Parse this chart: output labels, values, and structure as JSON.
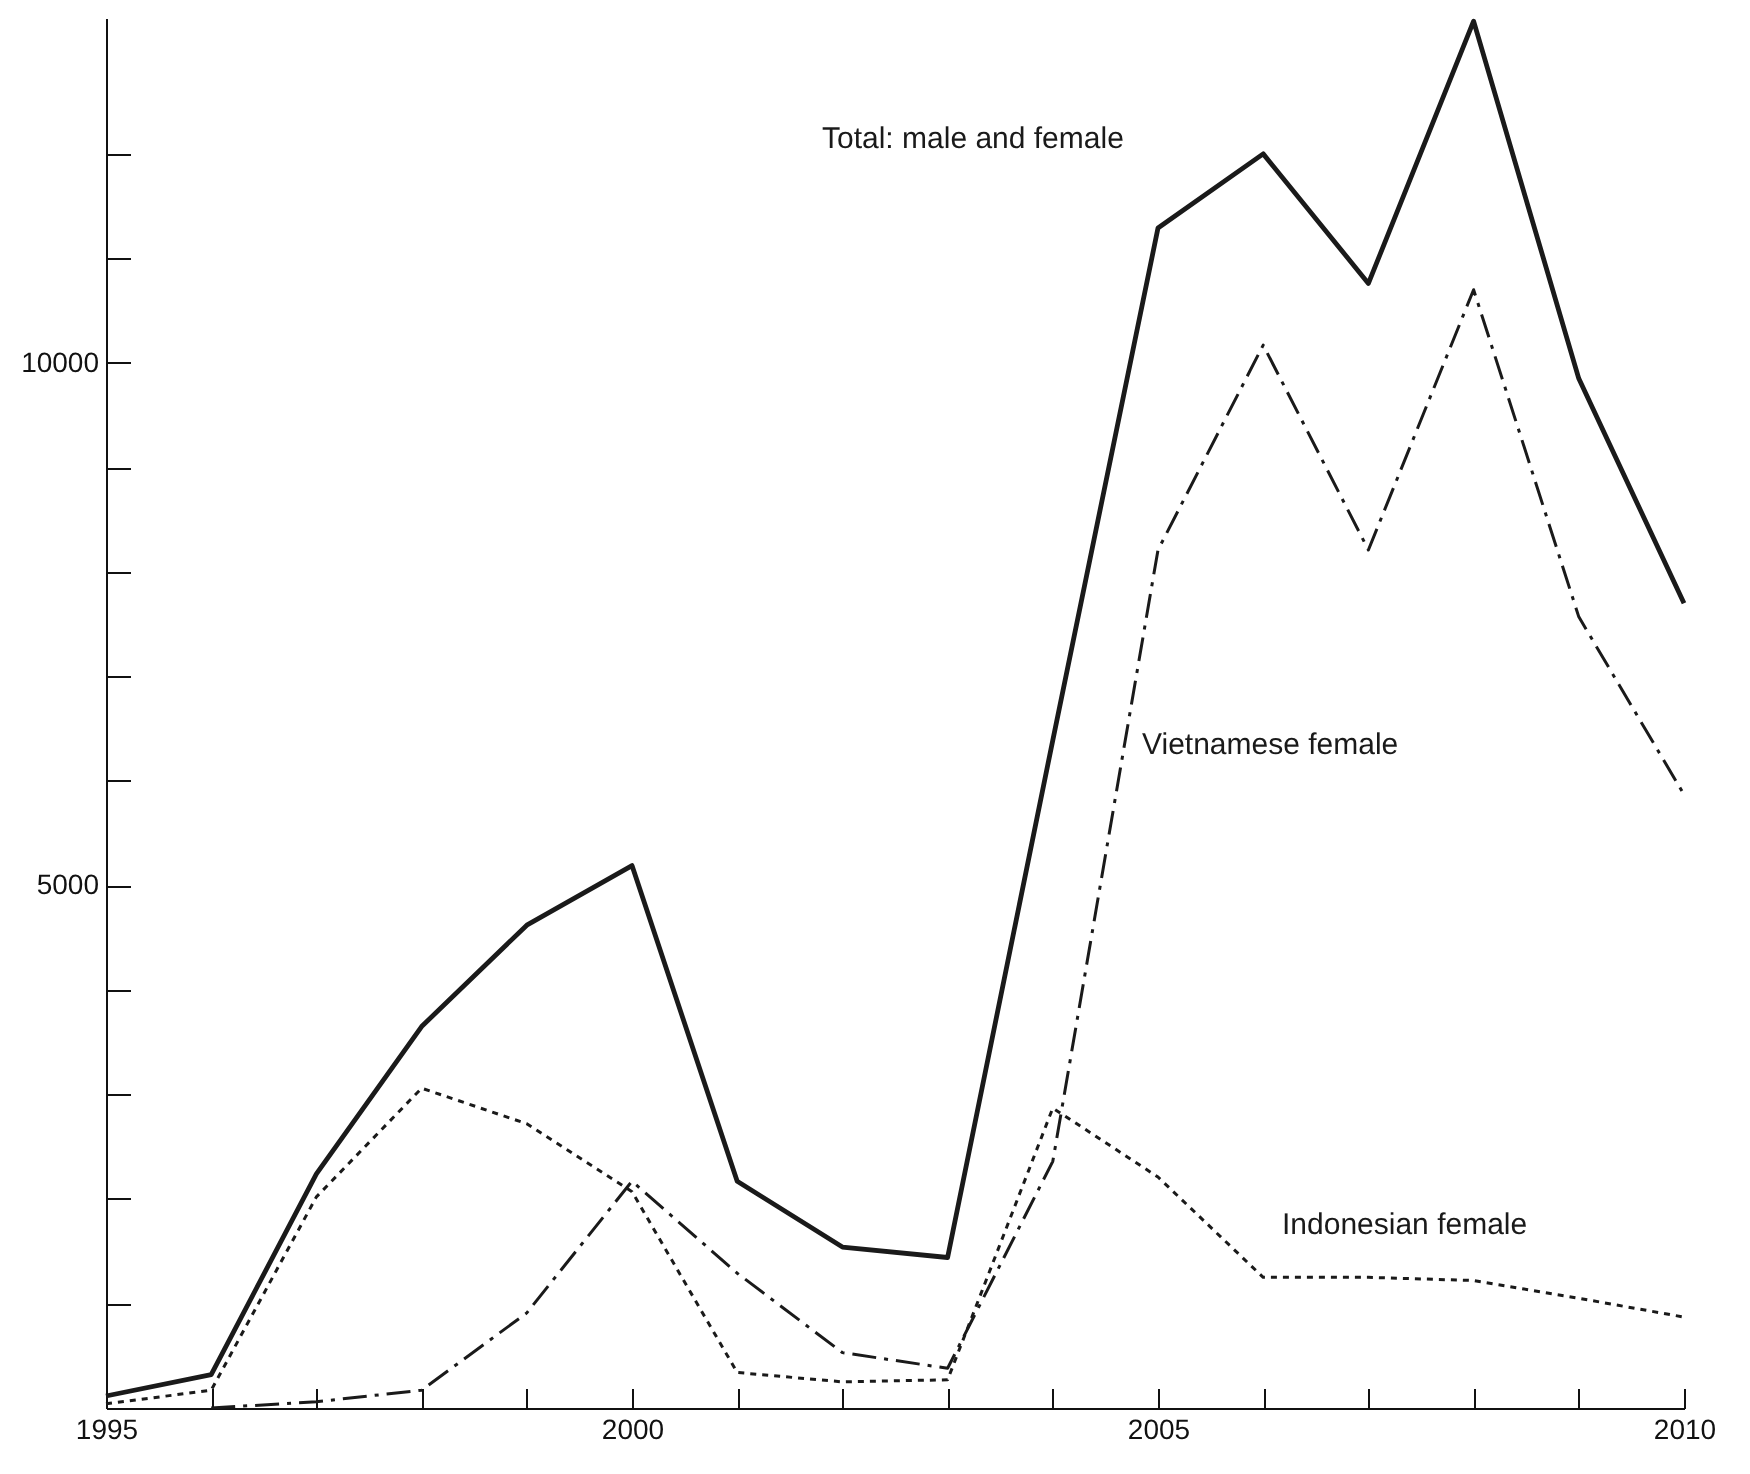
{
  "chart_data": {
    "type": "line",
    "x": [
      1995,
      1996,
      1997,
      1998,
      1999,
      2000,
      2001,
      2002,
      2003,
      2004,
      2005,
      2006,
      2007,
      2008,
      2009,
      2010
    ],
    "series": [
      {
        "name": "Total: male and female",
        "color": "#1a1a1a",
        "line_style": "solid",
        "values": [
          115,
          320,
          2240,
          3650,
          4620,
          5190,
          2170,
          1540,
          1440,
          6390,
          11290,
          12000,
          10760,
          13270,
          9850,
          7700
        ]
      },
      {
        "name": "Vietnamese female",
        "color": "#1a1a1a",
        "line_style": "dashed",
        "values": [
          null,
          0,
          60,
          170,
          910,
          2170,
          1290,
          530,
          380,
          2360,
          8210,
          10170,
          8210,
          10700,
          7570,
          5870
        ]
      },
      {
        "name": "Indonesian female",
        "color": "#1a1a1a",
        "line_style": "dotted",
        "values": [
          40,
          170,
          2020,
          3060,
          2720,
          2070,
          340,
          250,
          270,
          2870,
          2210,
          1250,
          1250,
          1220,
          1050,
          870
        ]
      }
    ],
    "xlim": [
      1995,
      2010
    ],
    "xticks": [
      1995,
      {
        "value": 1996,
        "label": null
      },
      {
        "value": 1997,
        "label": null
      },
      {
        "value": 1998,
        "label": null
      },
      {
        "value": 1999,
        "label": null
      },
      2000,
      {
        "value": 2001,
        "label": null
      },
      {
        "value": 2002,
        "label": null
      },
      {
        "value": 2003,
        "label": null
      },
      {
        "value": 2004,
        "label": null
      },
      2005,
      {
        "value": 2006,
        "label": null
      },
      {
        "value": 2007,
        "label": null
      },
      {
        "value": 2008,
        "label": null
      },
      {
        "value": 2009,
        "label": null
      },
      2010
    ],
    "ylim": [
      0,
      13300
    ],
    "yticks": [
      {
        "value": 1000,
        "label": null
      },
      {
        "value": 2000,
        "label": null
      },
      {
        "value": 3000,
        "label": null
      },
      {
        "value": 4000,
        "label": null
      },
      5000,
      {
        "value": 6000,
        "label": null
      },
      {
        "value": 7000,
        "label": null
      },
      {
        "value": 8000,
        "label": null
      },
      {
        "value": 9000,
        "label": null
      },
      10000,
      {
        "value": 11000,
        "label": null
      },
      {
        "value": 12000,
        "label": null
      }
    ],
    "grid": false,
    "legend": false,
    "marker": "none"
  }
}
